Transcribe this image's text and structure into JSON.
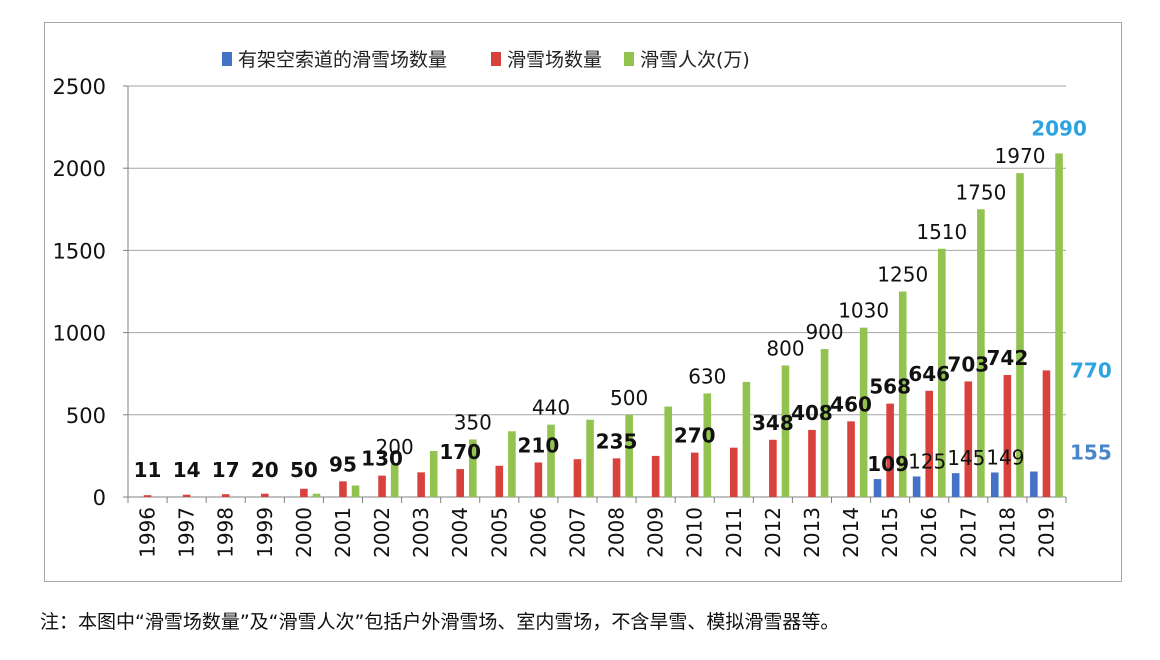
{
  "chart_data": {
    "type": "bar",
    "title": "",
    "xlabel": "",
    "ylabel": "",
    "ylim": [
      0,
      2500
    ],
    "yticks": [
      0,
      500,
      1000,
      1500,
      2000,
      2500
    ],
    "grid": true,
    "legend_position": "top",
    "categories": [
      "1996",
      "1997",
      "1998",
      "1999",
      "2000",
      "2001",
      "2002",
      "2003",
      "2004",
      "2005",
      "2006",
      "2007",
      "2008",
      "2009",
      "2010",
      "2011",
      "2012",
      "2013",
      "2014",
      "2015",
      "2016",
      "2017",
      "2018",
      "2019"
    ],
    "series": [
      {
        "name": "有架空索道的滑雪场数量",
        "color": "#4472c4",
        "values": [
          0,
          0,
          0,
          0,
          0,
          0,
          0,
          0,
          0,
          0,
          0,
          0,
          0,
          0,
          0,
          0,
          0,
          0,
          0,
          109,
          125,
          145,
          149,
          155
        ]
      },
      {
        "name": "滑雪场数量",
        "color": "#d9413c",
        "values": [
          11,
          14,
          17,
          20,
          50,
          95,
          130,
          150,
          170,
          190,
          210,
          230,
          235,
          250,
          270,
          300,
          348,
          408,
          460,
          568,
          646,
          703,
          742,
          770
        ]
      },
      {
        "name": "滑雪人次(万)",
        "color": "#92c350",
        "values": [
          0,
          0,
          0,
          0,
          20,
          70,
          200,
          280,
          350,
          400,
          440,
          470,
          500,
          550,
          630,
          700,
          800,
          900,
          1030,
          1250,
          1510,
          1750,
          1970,
          2090
        ]
      }
    ],
    "labels": [
      {
        "text": "11",
        "series": 1,
        "index": 0,
        "style": "bold"
      },
      {
        "text": "14",
        "series": 1,
        "index": 1,
        "style": "bold"
      },
      {
        "text": "17",
        "series": 1,
        "index": 2,
        "style": "bold"
      },
      {
        "text": "20",
        "series": 1,
        "index": 3,
        "style": "bold"
      },
      {
        "text": "50",
        "series": 1,
        "index": 4,
        "style": "bold"
      },
      {
        "text": "95",
        "series": 1,
        "index": 5,
        "style": "bold"
      },
      {
        "text": "130",
        "series": 1,
        "index": 6,
        "style": "bold"
      },
      {
        "text": "170",
        "series": 1,
        "index": 8,
        "style": "bold"
      },
      {
        "text": "210",
        "series": 1,
        "index": 10,
        "style": "bold"
      },
      {
        "text": "235",
        "series": 1,
        "index": 12,
        "style": "bold"
      },
      {
        "text": "270",
        "series": 1,
        "index": 14,
        "style": "bold"
      },
      {
        "text": "348",
        "series": 1,
        "index": 16,
        "style": "bold"
      },
      {
        "text": "408",
        "series": 1,
        "index": 17,
        "style": "bold"
      },
      {
        "text": "460",
        "series": 1,
        "index": 18,
        "style": "bold"
      },
      {
        "text": "568",
        "series": 1,
        "index": 19,
        "style": "bold"
      },
      {
        "text": "646",
        "series": 1,
        "index": 20,
        "style": "bold"
      },
      {
        "text": "703",
        "series": 1,
        "index": 21,
        "style": "bold"
      },
      {
        "text": "742",
        "series": 1,
        "index": 22,
        "style": "bold"
      },
      {
        "text": "770",
        "series": 1,
        "index": 23,
        "style": "blue"
      },
      {
        "text": "200",
        "series": 2,
        "index": 6,
        "style": "normal"
      },
      {
        "text": "350",
        "series": 2,
        "index": 8,
        "style": "normal"
      },
      {
        "text": "440",
        "series": 2,
        "index": 10,
        "style": "normal"
      },
      {
        "text": "500",
        "series": 2,
        "index": 12,
        "style": "normal"
      },
      {
        "text": "630",
        "series": 2,
        "index": 14,
        "style": "normal"
      },
      {
        "text": "800",
        "series": 2,
        "index": 16,
        "style": "normal"
      },
      {
        "text": "900",
        "series": 2,
        "index": 17,
        "style": "normal"
      },
      {
        "text": "1030",
        "series": 2,
        "index": 18,
        "style": "normal"
      },
      {
        "text": "1250",
        "series": 2,
        "index": 19,
        "style": "normal"
      },
      {
        "text": "1510",
        "series": 2,
        "index": 20,
        "style": "normal"
      },
      {
        "text": "1750",
        "series": 2,
        "index": 21,
        "style": "normal"
      },
      {
        "text": "1970",
        "series": 2,
        "index": 22,
        "style": "normal"
      },
      {
        "text": "2090",
        "series": 2,
        "index": 23,
        "style": "blue"
      },
      {
        "text": "109",
        "series": 0,
        "index": 19,
        "style": "bold"
      },
      {
        "text": "125",
        "series": 0,
        "index": 20,
        "style": "normal"
      },
      {
        "text": "145",
        "series": 0,
        "index": 21,
        "style": "normal"
      },
      {
        "text": "149",
        "series": 0,
        "index": 22,
        "style": "normal"
      },
      {
        "text": "155",
        "series": 0,
        "index": 23,
        "style": "blue2"
      }
    ]
  },
  "note": "注：本图中“滑雪场数量”及“滑雪人次”包括户外滑雪场、室内雪场，不含旱雪、模拟滑雪器等。"
}
